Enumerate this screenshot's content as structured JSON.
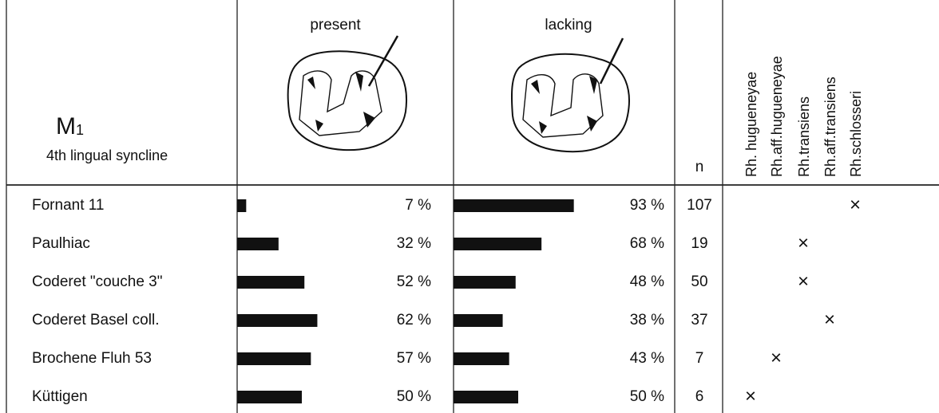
{
  "header": {
    "title": "M",
    "title_sub": "1",
    "subtitle": "4th lingual syncline",
    "present": "present",
    "lacking": "lacking",
    "n": "n",
    "species": [
      "Rh. hugueneyae",
      "Rh.aff.hugueneyae",
      "Rh.transiens",
      "Rh.aff.transiens",
      "Rh.schlosseri"
    ]
  },
  "rows": [
    {
      "site": "Fornant 11",
      "present": 7,
      "present_label": "7 %",
      "lacking": 93,
      "lacking_label": "93 %",
      "n": 107,
      "marks": [
        null,
        null,
        null,
        null,
        "×"
      ]
    },
    {
      "site": "Paulhiac",
      "present": 32,
      "present_label": "32 %",
      "lacking": 68,
      "lacking_label": "68 %",
      "n": 19,
      "marks": [
        null,
        null,
        "×",
        null,
        null
      ]
    },
    {
      "site": "Coderet \"couche 3\"",
      "present": 52,
      "present_label": "52 %",
      "lacking": 48,
      "lacking_label": "48 %",
      "n": 50,
      "marks": [
        null,
        null,
        "×",
        null,
        null
      ]
    },
    {
      "site": "Coderet  Basel coll.",
      "present": 62,
      "present_label": "62 %",
      "lacking": 38,
      "lacking_label": "38 %",
      "n": 37,
      "marks": [
        null,
        null,
        null,
        "×",
        null
      ]
    },
    {
      "site": "Brochene Fluh 53",
      "present": 57,
      "present_label": "57 %",
      "lacking": 43,
      "lacking_label": "43 %",
      "n": 7,
      "marks": [
        null,
        "×",
        null,
        null,
        null
      ]
    },
    {
      "site": "Küttigen",
      "present": 50,
      "present_label": "50 %",
      "lacking": 50,
      "lacking_label": "50 %",
      "n": 6,
      "marks": [
        "×",
        null,
        null,
        null,
        null
      ]
    }
  ]
}
